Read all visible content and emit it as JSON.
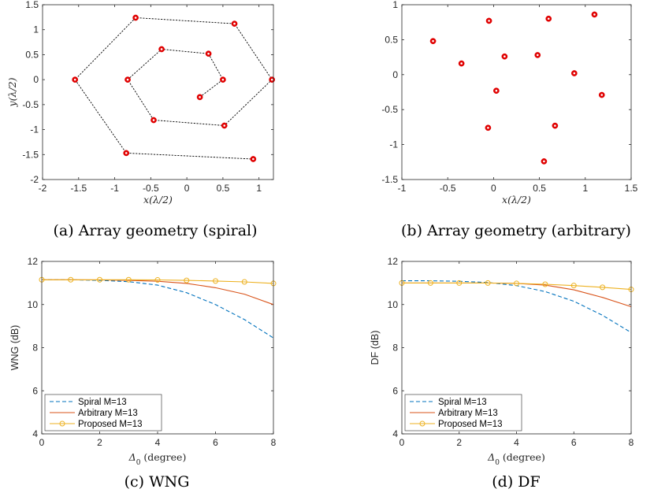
{
  "chart_data": [
    {
      "id": "a",
      "type": "scatter",
      "caption": "(a) Array geometry (spiral)",
      "xlabel": "x(λ/2)",
      "ylabel": "y(λ/2)",
      "xlim": [
        -2,
        1.2
      ],
      "ylim": [
        -2,
        1.5
      ],
      "xticks": [
        -2,
        -1.5,
        -1,
        -0.5,
        0,
        0.5,
        1
      ],
      "yticks": [
        -2,
        -1.5,
        -1,
        -0.5,
        0,
        0.5,
        1,
        1.5
      ],
      "connected": true,
      "marker_color": "#e00000",
      "line_color": "#000000",
      "points": [
        [
          0.18,
          -0.35
        ],
        [
          0.5,
          0.0
        ],
        [
          0.3,
          0.52
        ],
        [
          -0.35,
          0.61
        ],
        [
          -0.82,
          0.0
        ],
        [
          -0.46,
          -0.81
        ],
        [
          0.52,
          -0.92
        ],
        [
          1.18,
          0.0
        ],
        [
          0.66,
          1.12
        ],
        [
          -0.71,
          1.24
        ],
        [
          -1.55,
          0.0
        ],
        [
          -0.84,
          -1.47
        ],
        [
          0.92,
          -1.59
        ]
      ]
    },
    {
      "id": "b",
      "type": "scatter",
      "caption": "(b) Array geometry (arbitrary)",
      "xlabel": "x(λ/2)",
      "ylabel": "",
      "xlim": [
        -1,
        1.5
      ],
      "ylim": [
        -1.5,
        1
      ],
      "xticks": [
        -1,
        -0.5,
        0,
        0.5,
        1,
        1.5
      ],
      "yticks": [
        -1.5,
        -1,
        -0.5,
        0,
        0.5,
        1
      ],
      "connected": false,
      "marker_color": "#e00000",
      "points": [
        [
          -0.66,
          0.48
        ],
        [
          -0.35,
          0.16
        ],
        [
          -0.05,
          0.77
        ],
        [
          -0.06,
          -0.76
        ],
        [
          0.03,
          -0.23
        ],
        [
          0.12,
          0.26
        ],
        [
          0.48,
          0.28
        ],
        [
          0.6,
          0.8
        ],
        [
          0.55,
          -1.24
        ],
        [
          0.67,
          -0.73
        ],
        [
          0.88,
          0.02
        ],
        [
          1.1,
          0.86
        ],
        [
          1.18,
          -0.29
        ]
      ]
    },
    {
      "id": "c",
      "type": "line",
      "caption": "(c) WNG",
      "xlabel": "Δ0 (degree)",
      "ylabel": "WNG (dB)",
      "xlim": [
        0,
        8
      ],
      "ylim": [
        4,
        12
      ],
      "xticks": [
        0,
        2,
        4,
        6,
        8
      ],
      "yticks": [
        4,
        6,
        8,
        10,
        12
      ],
      "legend_position": "bottom-left",
      "series": [
        {
          "name": "Spiral M=13",
          "color": "#0072bd",
          "style": "dashed",
          "x": [
            0,
            1,
            2,
            3,
            4,
            5,
            6,
            7,
            8
          ],
          "y": [
            11.15,
            11.15,
            11.12,
            11.06,
            10.9,
            10.55,
            10.0,
            9.3,
            8.45
          ]
        },
        {
          "name": "Arbitrary M=13",
          "color": "#d95319",
          "style": "solid",
          "x": [
            0,
            1,
            2,
            3,
            4,
            5,
            6,
            7,
            8
          ],
          "y": [
            11.15,
            11.15,
            11.14,
            11.12,
            11.08,
            10.98,
            10.78,
            10.48,
            10.0
          ]
        },
        {
          "name": "Proposed M=13",
          "color": "#edb120",
          "style": "solid-circle",
          "x": [
            0,
            1,
            2,
            3,
            4,
            5,
            6,
            7,
            8
          ],
          "y": [
            11.15,
            11.15,
            11.15,
            11.15,
            11.14,
            11.12,
            11.09,
            11.05,
            10.98
          ]
        }
      ]
    },
    {
      "id": "d",
      "type": "line",
      "caption": "(d) DF",
      "xlabel": "Δ0 (degree)",
      "ylabel": "DF (dB)",
      "xlim": [
        0,
        8
      ],
      "ylim": [
        4,
        12
      ],
      "xticks": [
        0,
        2,
        4,
        6,
        8
      ],
      "yticks": [
        4,
        6,
        8,
        10,
        12
      ],
      "legend_position": "bottom-left",
      "series": [
        {
          "name": "Spiral M=13",
          "color": "#0072bd",
          "style": "dashed",
          "x": [
            0,
            1,
            2,
            3,
            4,
            5,
            6,
            7,
            8
          ],
          "y": [
            11.1,
            11.1,
            11.08,
            11.02,
            10.88,
            10.6,
            10.15,
            9.5,
            8.7
          ]
        },
        {
          "name": "Arbitrary M=13",
          "color": "#d95319",
          "style": "solid",
          "x": [
            0,
            1,
            2,
            3,
            4,
            5,
            6,
            7,
            8
          ],
          "y": [
            11.0,
            11.0,
            11.0,
            11.0,
            10.98,
            10.9,
            10.68,
            10.33,
            9.9
          ]
        },
        {
          "name": "Proposed M=13",
          "color": "#edb120",
          "style": "solid-circle",
          "x": [
            0,
            1,
            2,
            3,
            4,
            5,
            6,
            7,
            8
          ],
          "y": [
            11.0,
            11.0,
            11.0,
            11.0,
            10.98,
            10.94,
            10.88,
            10.8,
            10.7
          ]
        }
      ]
    }
  ]
}
